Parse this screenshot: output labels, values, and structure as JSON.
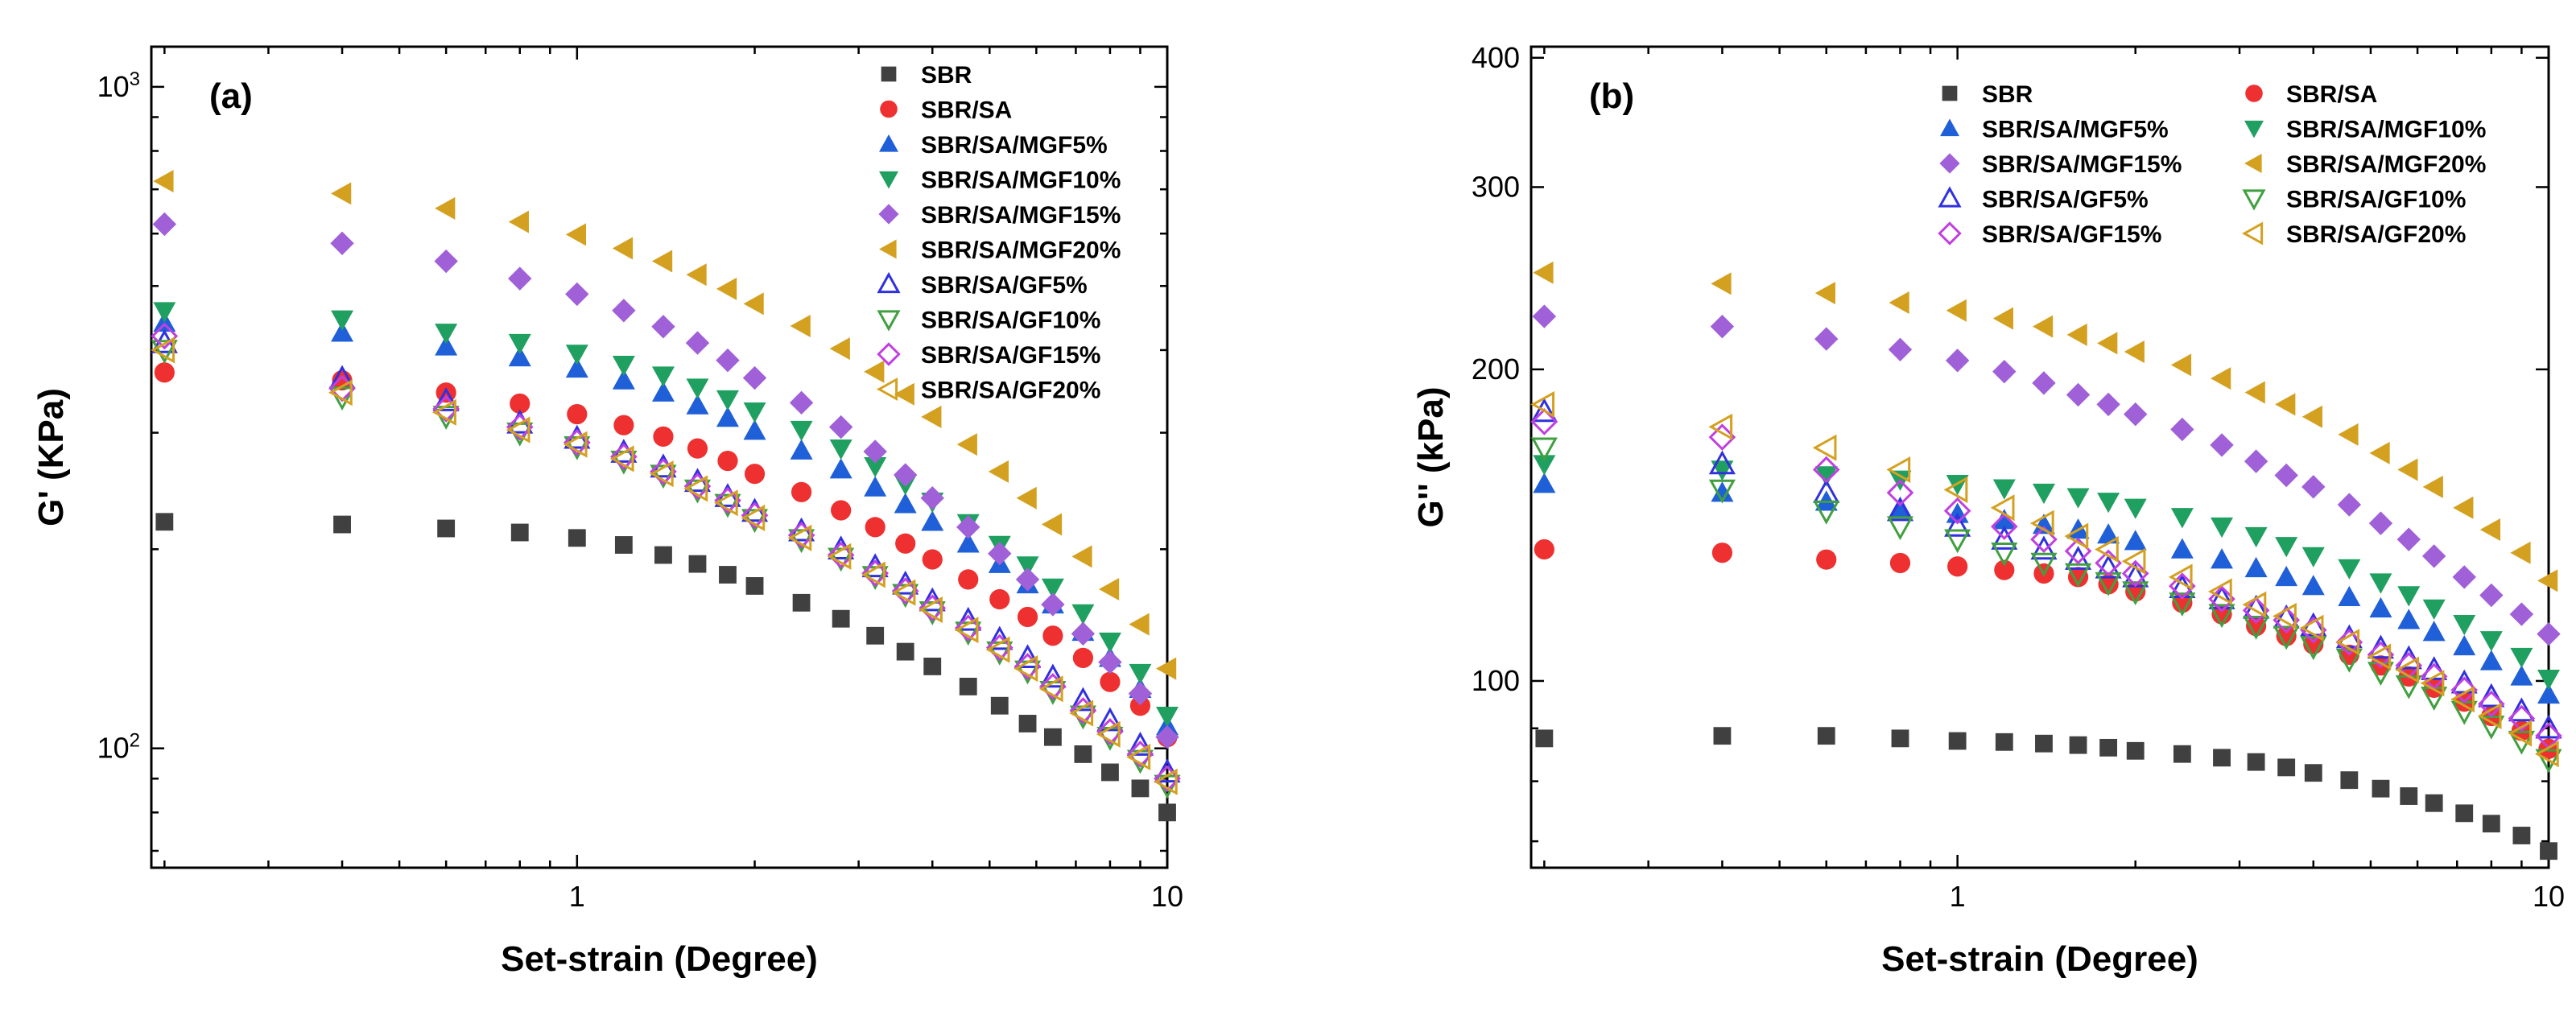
{
  "figure": {
    "description_free": true
  },
  "chart_data": [
    {
      "type": "scatter",
      "panel_label": "(a)",
      "xlabel": "Set-strain (Degree)",
      "ylabel": "G' (KPa)",
      "xscale": "log",
      "yscale": "log",
      "xlim": [
        0.19,
        10
      ],
      "ylim": [
        66,
        1150
      ],
      "x_ticks": [
        {
          "v": 1,
          "label": "1"
        },
        {
          "v": 10,
          "label": "10"
        }
      ],
      "y_ticks": [
        {
          "v": 100,
          "label": "10^2"
        },
        {
          "v": 1000,
          "label": "10^3"
        }
      ],
      "legend_position": "top-right",
      "legend_columns": 1,
      "x": [
        0.2,
        0.4,
        0.6,
        0.8,
        1.0,
        1.2,
        1.4,
        1.6,
        1.8,
        2.0,
        2.4,
        2.8,
        3.2,
        3.6,
        4.0,
        4.6,
        5.2,
        5.8,
        6.4,
        7.2,
        8.0,
        9.0,
        10.0
      ],
      "series": [
        {
          "name": "SBR",
          "marker": "square",
          "filled": true,
          "color": "#404040",
          "values": [
            220,
            218,
            215,
            212,
            208,
            203,
            196,
            190,
            183,
            176,
            166,
            157,
            148,
            140,
            133,
            124,
            116,
            109,
            104,
            98,
            92,
            87,
            80
          ]
        },
        {
          "name": "SBR/SA",
          "marker": "circle",
          "filled": true,
          "color": "#ee3030",
          "values": [
            370,
            360,
            345,
            332,
            320,
            308,
            296,
            284,
            272,
            260,
            244,
            229,
            216,
            204,
            193,
            180,
            168,
            158,
            148,
            137,
            126,
            116,
            104
          ]
        },
        {
          "name": "SBR/SA/MGF5%",
          "marker": "triangle-up",
          "filled": true,
          "color": "#1f5fd8",
          "values": [
            440,
            425,
            405,
            390,
            375,
            360,
            345,
            330,
            316,
            302,
            282,
            264,
            248,
            234,
            220,
            204,
            190,
            177,
            165,
            150,
            137,
            123,
            108
          ]
        },
        {
          "name": "SBR/SA/MGF10%",
          "marker": "triangle-down",
          "filled": true,
          "color": "#20a060",
          "values": [
            458,
            445,
            425,
            410,
            395,
            380,
            366,
            351,
            337,
            323,
            303,
            284,
            267,
            251,
            236,
            219,
            203,
            189,
            175,
            160,
            145,
            130,
            112
          ]
        },
        {
          "name": "SBR/SA/MGF15%",
          "marker": "diamond",
          "filled": true,
          "color": "#a060d8",
          "values": [
            620,
            580,
            545,
            513,
            486,
            459,
            434,
            410,
            386,
            363,
            333,
            306,
            281,
            259,
            239,
            216,
            197,
            180,
            165,
            149,
            135,
            121,
            104
          ]
        },
        {
          "name": "SBR/SA/MGF20%",
          "marker": "triangle-left",
          "filled": true,
          "color": "#d4a020",
          "values": [
            720,
            690,
            655,
            625,
            598,
            570,
            545,
            520,
            495,
            470,
            435,
            402,
            371,
            343,
            317,
            288,
            262,
            239,
            218,
            195,
            174,
            154,
            132
          ]
        },
        {
          "name": "SBR/SA/GF5%",
          "marker": "triangle-up",
          "filled": false,
          "color": "#3030e0",
          "values": [
            410,
            362,
            335,
            310,
            294,
            280,
            266,
            253,
            240,
            228,
            213,
            200,
            188,
            177,
            167,
            156,
            146,
            137,
            128,
            118,
            110,
            101,
            92
          ]
        },
        {
          "name": "SBR/SA/GF10%",
          "marker": "triangle-down",
          "filled": false,
          "color": "#40a040",
          "values": [
            400,
            340,
            318,
            300,
            286,
            272,
            259,
            246,
            234,
            222,
            207,
            194,
            182,
            171,
            161,
            150,
            140,
            131,
            122,
            112,
            104,
            96,
            88
          ]
        },
        {
          "name": "SBR/SA/GF15%",
          "marker": "diamond",
          "filled": false,
          "color": "#c040e0",
          "values": [
            420,
            350,
            326,
            306,
            290,
            276,
            262,
            249,
            237,
            225,
            210,
            196,
            184,
            173,
            163,
            152,
            142,
            133,
            124,
            114,
            106,
            98,
            90
          ]
        },
        {
          "name": "SBR/SA/GF20%",
          "marker": "triangle-left",
          "filled": false,
          "color": "#d4a020",
          "values": [
            400,
            345,
            322,
            303,
            288,
            274,
            260,
            247,
            235,
            223,
            208,
            195,
            183,
            172,
            162,
            151,
            141,
            132,
            123,
            113,
            105,
            97,
            89
          ]
        }
      ]
    },
    {
      "type": "scatter",
      "panel_label": "(b)",
      "xlabel": "Set-strain (Degree)",
      "ylabel": "G'' (kPa)",
      "xscale": "log",
      "yscale": "log",
      "xlim": [
        0.19,
        10
      ],
      "ylim": [
        66,
        410
      ],
      "x_ticks": [
        {
          "v": 1,
          "label": "1"
        },
        {
          "v": 10,
          "label": "10"
        }
      ],
      "y_ticks": [
        {
          "v": 100,
          "label": "100"
        },
        {
          "v": 200,
          "label": "200"
        },
        {
          "v": 300,
          "label": "300"
        },
        {
          "v": 400,
          "label": "400"
        }
      ],
      "legend_position": "top-right",
      "legend_columns": 2,
      "x": [
        0.2,
        0.4,
        0.6,
        0.8,
        1.0,
        1.2,
        1.4,
        1.6,
        1.8,
        2.0,
        2.4,
        2.8,
        3.2,
        3.6,
        4.0,
        4.6,
        5.2,
        5.8,
        6.4,
        7.2,
        8.0,
        9.0,
        10.0
      ],
      "series": [
        {
          "name": "SBR",
          "marker": "square",
          "filled": true,
          "color": "#404040",
          "values": [
            88,
            88.5,
            88.5,
            88,
            87.5,
            87.3,
            87,
            86.7,
            86.2,
            85.6,
            85,
            84.3,
            83.5,
            82.5,
            81.5,
            80.2,
            78.7,
            77.4,
            76.2,
            74.5,
            72.8,
            70.9,
            68.5
          ]
        },
        {
          "name": "SBR/SA",
          "marker": "circle",
          "filled": true,
          "color": "#ee3030",
          "values": [
            134,
            133,
            131,
            130,
            129,
            128,
            127,
            126,
            124,
            122,
            119,
            116,
            113,
            110.5,
            108.5,
            106,
            103.5,
            101,
            98.5,
            95.5,
            92.5,
            89.5,
            86
          ]
        },
        {
          "name": "SBR/SA/MGF5%",
          "marker": "triangle-up",
          "filled": true,
          "color": "#1f5fd8",
          "values": [
            155,
            152,
            149,
            147,
            145,
            143,
            141.5,
            140,
            138.5,
            136.5,
            134,
            131,
            128.5,
            126,
            123.5,
            120.5,
            117.5,
            114.5,
            111.5,
            108,
            104.5,
            101,
            97
          ]
        },
        {
          "name": "SBR/SA/MGF10%",
          "marker": "triangle-down",
          "filled": true,
          "color": "#20a060",
          "values": [
            162,
            160,
            158,
            156.5,
            155,
            153.5,
            152,
            150.5,
            149,
            147,
            144,
            141,
            138,
            135,
            132,
            128.5,
            124.5,
            121,
            117.5,
            113.5,
            109.5,
            105.5,
            100.5
          ]
        },
        {
          "name": "SBR/SA/MGF15%",
          "marker": "diamond",
          "filled": true,
          "color": "#a060d8",
          "values": [
            225,
            220,
            214,
            209,
            204,
            199,
            194,
            189,
            185,
            181,
            175,
            169,
            163,
            158,
            154,
            148,
            142,
            137,
            132,
            126,
            121,
            116,
            111
          ]
        },
        {
          "name": "SBR/SA/MGF20%",
          "marker": "triangle-left",
          "filled": true,
          "color": "#d4a020",
          "values": [
            248,
            242,
            237,
            232,
            228,
            224,
            220,
            216,
            212,
            208,
            202,
            196,
            190,
            185,
            180,
            173,
            166,
            160,
            154,
            147,
            140,
            133,
            125
          ]
        },
        {
          "name": "SBR/SA/GF5%",
          "marker": "triangle-up",
          "filled": false,
          "color": "#3030e0",
          "values": [
            182,
            162,
            152,
            146,
            141,
            137,
            134,
            131,
            128.5,
            126,
            123,
            120,
            117.5,
            115,
            113,
            110,
            107.5,
            105,
            102.5,
            99.5,
            96.5,
            93.5,
            90
          ]
        },
        {
          "name": "SBR/SA/GF10%",
          "marker": "triangle-down",
          "filled": false,
          "color": "#40a040",
          "values": [
            168,
            153,
            146,
            141,
            137,
            133,
            130,
            127,
            124.5,
            122,
            119,
            116,
            113,
            110.5,
            108,
            105,
            102,
            99,
            96.5,
            93.5,
            90.5,
            87.5,
            84
          ]
        },
        {
          "name": "SBR/SA/GF15%",
          "marker": "diamond",
          "filled": false,
          "color": "#c040e0",
          "values": [
            178,
            172,
            160,
            152,
            146,
            141,
            137,
            133.5,
            130,
            127,
            123.5,
            120,
            117,
            114.5,
            112,
            109,
            106,
            103.5,
            101,
            98,
            95,
            92,
            88.5
          ]
        },
        {
          "name": "SBR/SA/GF20%",
          "marker": "triangle-left",
          "filled": false,
          "color": "#d4a020",
          "values": [
            185,
            176,
            168,
            160,
            153,
            147,
            142,
            138,
            134,
            130.5,
            126,
            122,
            118.5,
            115.5,
            112.5,
            109,
            105.5,
            102.5,
            99.5,
            96,
            92.5,
            89,
            85
          ]
        }
      ]
    }
  ]
}
